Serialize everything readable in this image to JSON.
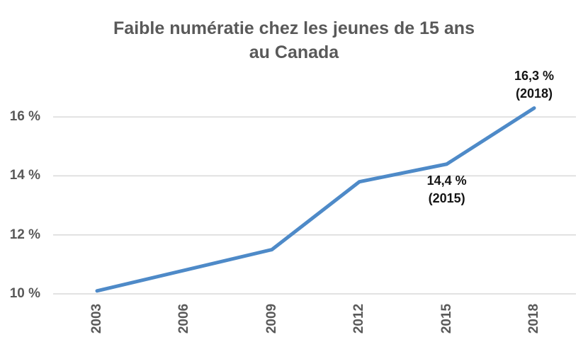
{
  "page": {
    "background": "#ffffff"
  },
  "chart_data": {
    "type": "line",
    "title": "Faible numératie chez les jeunes de 15 ans au Canada",
    "title_lines": [
      "Faible numératie chez les jeunes de 15 ans",
      "au Canada"
    ],
    "x": [
      2003,
      2006,
      2009,
      2012,
      2015,
      2018
    ],
    "x_labels": [
      "2003",
      "2006",
      "2009",
      "2012",
      "2015",
      "2018"
    ],
    "values": [
      10.1,
      10.8,
      11.5,
      13.8,
      14.4,
      16.3
    ],
    "unit": "%",
    "ylim": [
      10,
      17
    ],
    "yticks": [
      10,
      12,
      14,
      16
    ],
    "ytick_labels": [
      "10 %",
      "12 %",
      "14 %",
      "16 %"
    ],
    "grid": "horizontal",
    "legend": "none",
    "xlabel": "",
    "ylabel": "",
    "line_color": "#4E8AC8",
    "gridline_color": "#D9D9D9",
    "title_color": "#595959",
    "axis_text_color": "#595959",
    "annotation_color": "#141414",
    "annotations": [
      {
        "x": 2015,
        "value": 14.4,
        "lines": [
          "14,4 %",
          "(2015)"
        ],
        "position": "below"
      },
      {
        "x": 2018,
        "value": 16.3,
        "lines": [
          "16,3 %",
          "(2018)"
        ],
        "position": "above"
      }
    ]
  }
}
